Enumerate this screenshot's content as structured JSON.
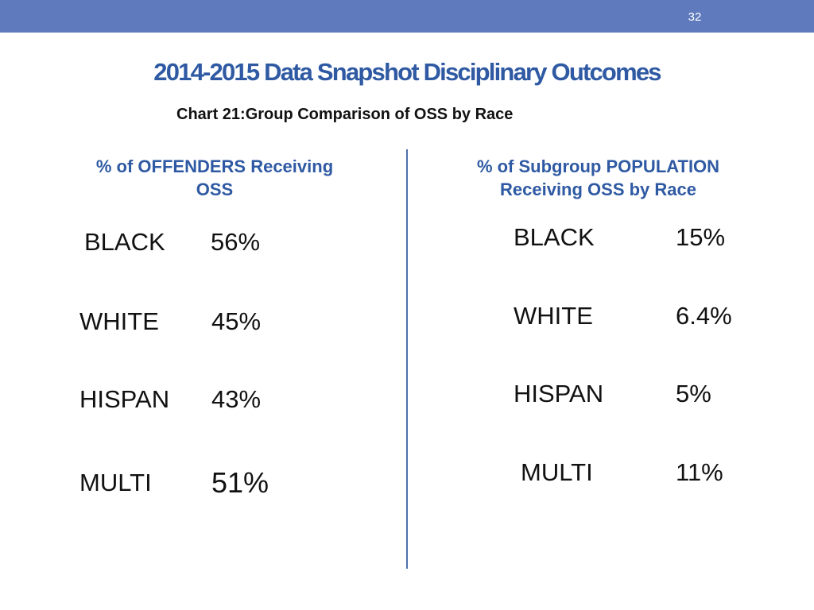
{
  "slide": {
    "page_number": "32",
    "title": "2014-2015 Data Snapshot Disciplinary Outcomes",
    "subtitle": "Chart 21:Group Comparison of OSS by Race",
    "header_color": "#5f7bbd",
    "title_color": "#2f5aa3",
    "divider_color": "#4d6fa9"
  },
  "left_column": {
    "heading": "% of OFFENDERS Receiving\nOSS",
    "rows": [
      {
        "label": "BLACK",
        "value": "56%"
      },
      {
        "label": "WHITE",
        "value": "45%"
      },
      {
        "label": "HISPAN",
        "value": "43%"
      },
      {
        "label": "MULTI",
        "value": "51%"
      }
    ]
  },
  "right_column": {
    "heading": "% of Subgroup POPULATION\nReceiving OSS by Race",
    "rows": [
      {
        "label": "BLACK",
        "value": "15%"
      },
      {
        "label": "WHITE",
        "value": "6.4%"
      },
      {
        "label": "HISPAN",
        "value": "5%"
      },
      {
        "label": "MULTI",
        "value": "11%"
      }
    ]
  }
}
